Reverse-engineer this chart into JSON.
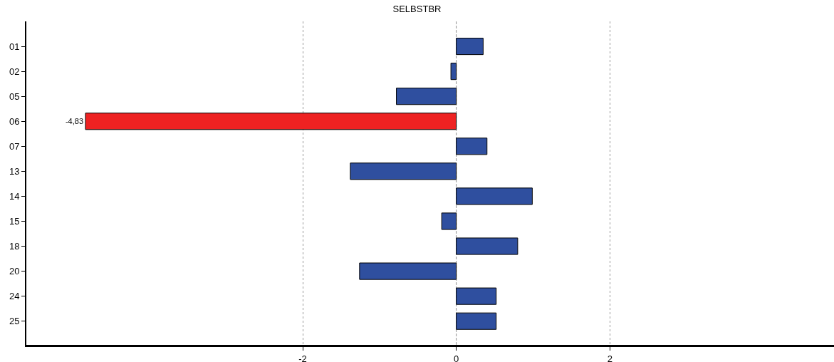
{
  "chart_data": {
    "type": "bar",
    "orientation": "horizontal",
    "title": "SELBSTBR",
    "categories": [
      "01",
      "02",
      "05",
      "06",
      "07",
      "13",
      "14",
      "15",
      "18",
      "20",
      "24",
      "25"
    ],
    "values": [
      0.35,
      -0.07,
      -0.78,
      -4.83,
      0.4,
      -1.38,
      0.99,
      -0.19,
      0.8,
      -1.26,
      0.52,
      0.52
    ],
    "colors": [
      "#2f4f9f",
      "#2f4f9f",
      "#2f4f9f",
      "#ee2222",
      "#2f4f9f",
      "#2f4f9f",
      "#2f4f9f",
      "#2f4f9f",
      "#2f4f9f",
      "#2f4f9f",
      "#2f4f9f",
      "#2f4f9f"
    ],
    "value_labels": [
      null,
      null,
      null,
      "-4,83",
      null,
      null,
      null,
      null,
      null,
      null,
      null,
      null
    ],
    "xlim": [
      -5.6,
      4.92
    ],
    "xticks": [
      -2,
      0,
      2
    ],
    "grid": "x"
  }
}
